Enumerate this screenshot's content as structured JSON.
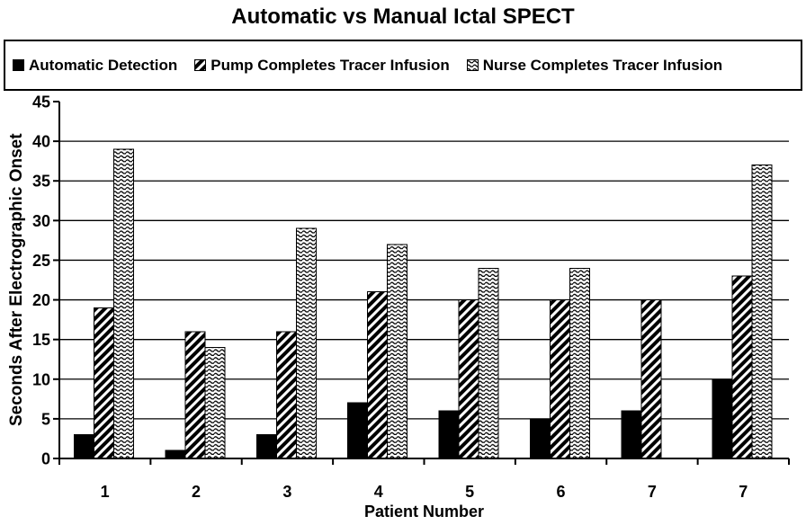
{
  "title": "Automatic vs Manual Ictal SPECT",
  "legend": {
    "items": [
      {
        "label": "Automatic Detection",
        "swatch": "solid-black-square"
      },
      {
        "label": "Pump Completes Tracer Infusion",
        "swatch": "diagonal-hatch-square"
      },
      {
        "label": "Nurse Completes Tracer Infusion",
        "swatch": "wave-pattern-square"
      }
    ]
  },
  "chart_data": {
    "type": "bar",
    "title": "Automatic vs Manual Ictal SPECT",
    "categories": [
      "1",
      "2",
      "3",
      "4",
      "5",
      "6",
      "7",
      "7"
    ],
    "series": [
      {
        "name": "Automatic Detection",
        "pattern": "solid",
        "values": [
          3,
          1,
          3,
          7,
          6,
          5,
          6,
          10
        ]
      },
      {
        "name": "Pump Completes Tracer Infusion",
        "pattern": "hatch",
        "values": [
          19,
          16,
          16,
          21,
          20,
          20,
          20,
          23
        ]
      },
      {
        "name": "Nurse Completes Tracer Infusion",
        "pattern": "wave",
        "values": [
          39,
          14,
          29,
          27,
          24,
          24,
          null,
          37
        ]
      }
    ],
    "xlabel": "Patient Number",
    "ylabel": "Seconds After Electrographic Onset",
    "ylim": [
      0,
      45
    ],
    "y_ticks": [
      0,
      5,
      10,
      15,
      20,
      25,
      30,
      35,
      40,
      45
    ],
    "grid": true,
    "legend_position": "top",
    "colors": {
      "foreground": "#000000",
      "background": "#ffffff"
    }
  }
}
